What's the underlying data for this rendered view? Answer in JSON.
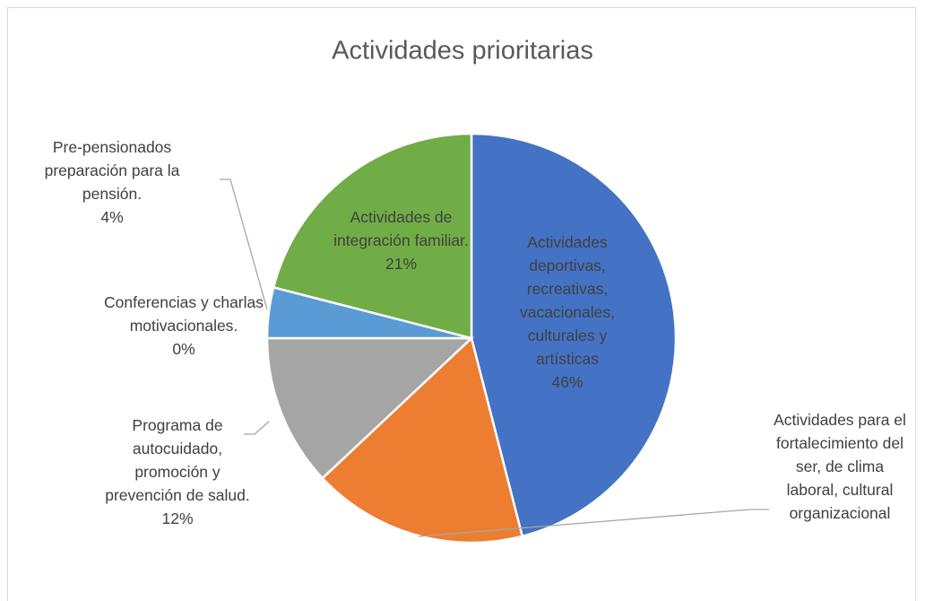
{
  "chart_data": {
    "type": "pie",
    "title": "Actividades prioritarias",
    "categories": [
      "Actividades deportivas, recreativas, vacacionales, culturales y artísticas",
      "Actividades para el fortalecimiento del ser, de clima laboral, cultural organizacional",
      "Programa de autocuidado, promoción y prevención de salud.",
      "Conferencias y charlas motivacionales.",
      "Pre-pensionados preparación para la pensión.",
      "Actividades de integración familiar."
    ],
    "values": [
      46,
      17,
      12,
      0,
      4,
      21
    ],
    "value_labels": [
      "46%",
      null,
      "12%",
      "0%",
      "4%",
      "21%"
    ],
    "colors": [
      "#4472c4",
      "#ed7d31",
      "#a5a5a5",
      "#ffc000",
      "#5b9bd5",
      "#70ad47"
    ]
  }
}
